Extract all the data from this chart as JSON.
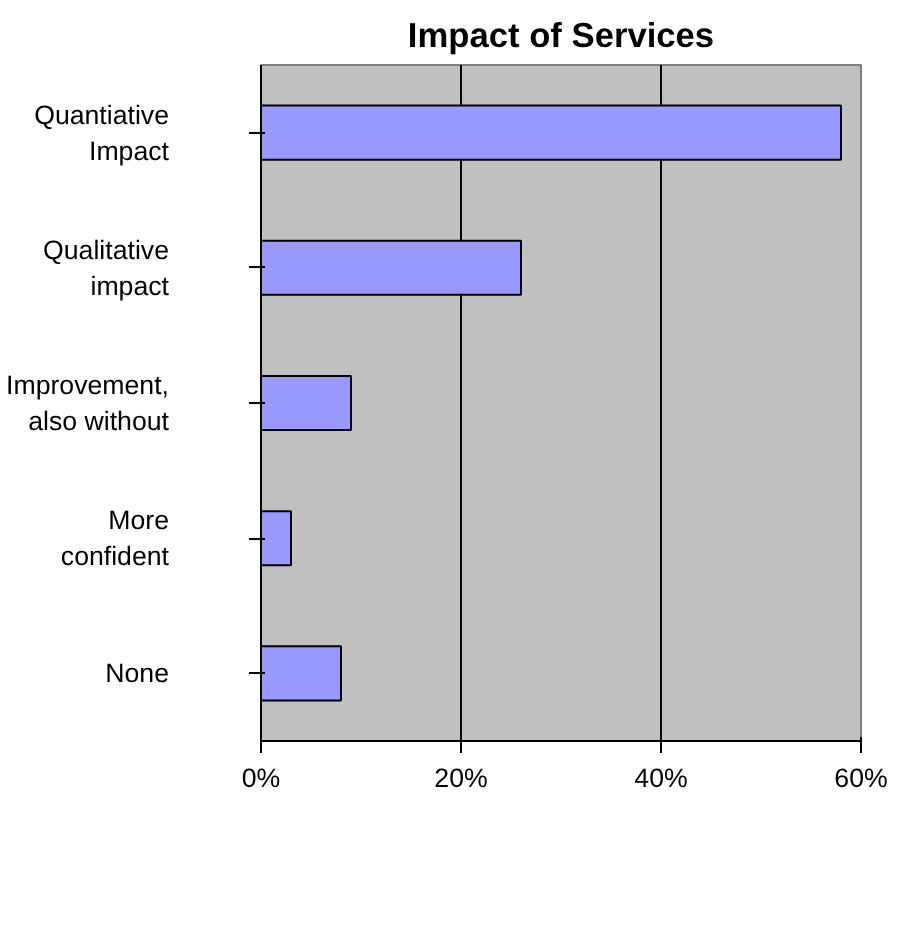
{
  "chart_data": {
    "type": "bar",
    "orientation": "horizontal",
    "title": "Impact of Services",
    "categories": [
      "Quantiative Impact",
      "Qualitative impact",
      "Improvement, also without",
      "More confident",
      "None"
    ],
    "values": [
      58,
      26,
      9,
      3,
      8
    ],
    "color": "#9999ff",
    "xlim": [
      0,
      60
    ],
    "xticks": [
      {
        "value": 0,
        "label": "0%"
      },
      {
        "value": 20,
        "label": "20%"
      },
      {
        "value": 40,
        "label": "40%"
      },
      {
        "value": 60,
        "label": "60%"
      }
    ],
    "grid": "x"
  }
}
